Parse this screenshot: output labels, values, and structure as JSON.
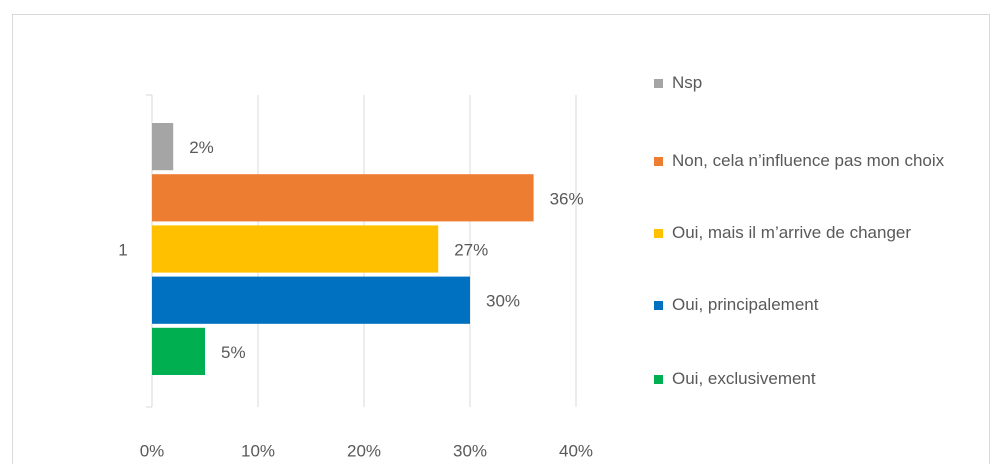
{
  "chart_data": {
    "type": "bar",
    "orientation": "horizontal",
    "categories": [
      "1"
    ],
    "series": [
      {
        "name": "Nsp",
        "color": "#a5a5a5",
        "values": [
          2
        ],
        "value_labels": [
          "2%"
        ]
      },
      {
        "name": "Non, cela n’influence pas mon choix",
        "color": "#ed7d31",
        "values": [
          36
        ],
        "value_labels": [
          "36%"
        ]
      },
      {
        "name": "Oui, mais il m’arrive de changer",
        "color": "#ffc000",
        "values": [
          27
        ],
        "value_labels": [
          "27%"
        ]
      },
      {
        "name": "Oui, principalement",
        "color": "#0070c0",
        "values": [
          30
        ],
        "value_labels": [
          "30%"
        ]
      },
      {
        "name": "Oui, exclusivement",
        "color": "#00b050",
        "values": [
          5
        ],
        "value_labels": [
          "5%"
        ]
      }
    ],
    "xlim": [
      0,
      40
    ],
    "xticks": [
      {
        "value": 0,
        "label": "0%"
      },
      {
        "value": 10,
        "label": "10%"
      },
      {
        "value": 20,
        "label": "20%"
      },
      {
        "value": 30,
        "label": "30%"
      },
      {
        "value": 40,
        "label": "40%"
      }
    ],
    "grid": true,
    "legend": "right"
  }
}
